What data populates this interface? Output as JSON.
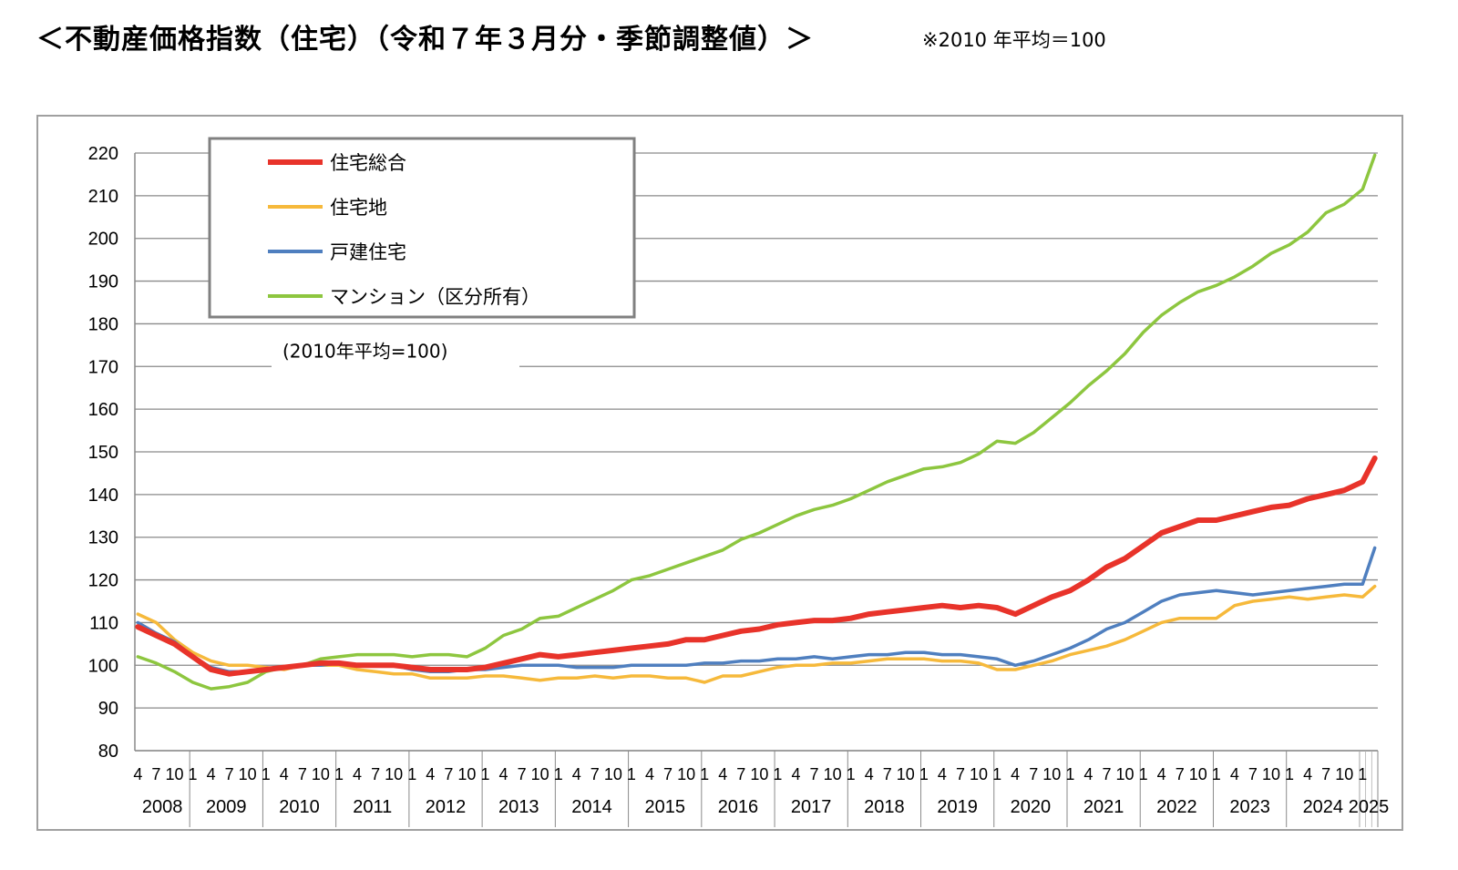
{
  "header": {
    "title": "＜不動産価格指数（住宅）（令和７年３月分・季節調整値）＞",
    "note": "※2010 年平均＝100"
  },
  "chart_data": {
    "type": "line",
    "title": "",
    "xlabel": "",
    "ylabel": "",
    "baseline_note": "(2010年平均=100)",
    "ylim": [
      80,
      220
    ],
    "yticks": [
      80,
      90,
      100,
      110,
      120,
      130,
      140,
      150,
      160,
      170,
      180,
      190,
      200,
      210,
      220
    ],
    "grid": true,
    "legend_position": "top-left",
    "x_start": "2008-04",
    "x_end": "2025-03",
    "year_labels": [
      "2008",
      "2009",
      "2010",
      "2011",
      "2012",
      "2013",
      "2014",
      "2015",
      "2016",
      "2017",
      "2018",
      "2019",
      "2020",
      "2021",
      "2022",
      "2023",
      "2024",
      "2025"
    ],
    "month_tick_labels": [
      "4",
      "7",
      "10",
      "1"
    ],
    "series": [
      {
        "name": "住宅総合",
        "color": "#e8332a",
        "points": [
          [
            "2008-04",
            109
          ],
          [
            "2008-07",
            107
          ],
          [
            "2008-10",
            105
          ],
          [
            "2009-01",
            102
          ],
          [
            "2009-04",
            99
          ],
          [
            "2009-07",
            98
          ],
          [
            "2009-10",
            98.5
          ],
          [
            "2010-01",
            99
          ],
          [
            "2010-04",
            99.5
          ],
          [
            "2010-07",
            100
          ],
          [
            "2010-10",
            100.5
          ],
          [
            "2011-01",
            100.5
          ],
          [
            "2011-04",
            100
          ],
          [
            "2011-07",
            100
          ],
          [
            "2011-10",
            100
          ],
          [
            "2012-01",
            99.5
          ],
          [
            "2012-04",
            99
          ],
          [
            "2012-07",
            99
          ],
          [
            "2012-10",
            99
          ],
          [
            "2013-01",
            99.5
          ],
          [
            "2013-04",
            100.5
          ],
          [
            "2013-07",
            101.5
          ],
          [
            "2013-10",
            102.5
          ],
          [
            "2014-01",
            102
          ],
          [
            "2014-04",
            102.5
          ],
          [
            "2014-07",
            103
          ],
          [
            "2014-10",
            103.5
          ],
          [
            "2015-01",
            104
          ],
          [
            "2015-04",
            104.5
          ],
          [
            "2015-07",
            105
          ],
          [
            "2015-10",
            106
          ],
          [
            "2016-01",
            106
          ],
          [
            "2016-04",
            107
          ],
          [
            "2016-07",
            108
          ],
          [
            "2016-10",
            108.5
          ],
          [
            "2017-01",
            109.5
          ],
          [
            "2017-04",
            110
          ],
          [
            "2017-07",
            110.5
          ],
          [
            "2017-10",
            110.5
          ],
          [
            "2018-01",
            111
          ],
          [
            "2018-04",
            112
          ],
          [
            "2018-07",
            112.5
          ],
          [
            "2018-10",
            113
          ],
          [
            "2019-01",
            113.5
          ],
          [
            "2019-04",
            114
          ],
          [
            "2019-07",
            113.5
          ],
          [
            "2019-10",
            114
          ],
          [
            "2020-01",
            113.5
          ],
          [
            "2020-04",
            112
          ],
          [
            "2020-07",
            114
          ],
          [
            "2020-10",
            116
          ],
          [
            "2021-01",
            117.5
          ],
          [
            "2021-04",
            120
          ],
          [
            "2021-07",
            123
          ],
          [
            "2021-10",
            125
          ],
          [
            "2022-01",
            128
          ],
          [
            "2022-04",
            131
          ],
          [
            "2022-07",
            132.5
          ],
          [
            "2022-10",
            134
          ],
          [
            "2023-01",
            134
          ],
          [
            "2023-04",
            135
          ],
          [
            "2023-07",
            136
          ],
          [
            "2023-10",
            137
          ],
          [
            "2024-01",
            137.5
          ],
          [
            "2024-04",
            139
          ],
          [
            "2024-07",
            140
          ],
          [
            "2024-10",
            141
          ],
          [
            "2025-01",
            143
          ],
          [
            "2025-03",
            148.5
          ]
        ]
      },
      {
        "name": "住宅地",
        "color": "#f6b93b",
        "points": [
          [
            "2008-04",
            112
          ],
          [
            "2008-07",
            110
          ],
          [
            "2008-10",
            106
          ],
          [
            "2009-01",
            103
          ],
          [
            "2009-04",
            101
          ],
          [
            "2009-07",
            100
          ],
          [
            "2009-10",
            100
          ],
          [
            "2010-01",
            99.5
          ],
          [
            "2010-04",
            99
          ],
          [
            "2010-07",
            100
          ],
          [
            "2010-10",
            100
          ],
          [
            "2011-01",
            100
          ],
          [
            "2011-04",
            99
          ],
          [
            "2011-07",
            98.5
          ],
          [
            "2011-10",
            98
          ],
          [
            "2012-01",
            98
          ],
          [
            "2012-04",
            97
          ],
          [
            "2012-07",
            97
          ],
          [
            "2012-10",
            97
          ],
          [
            "2013-01",
            97.5
          ],
          [
            "2013-04",
            97.5
          ],
          [
            "2013-07",
            97
          ],
          [
            "2013-10",
            96.5
          ],
          [
            "2014-01",
            97
          ],
          [
            "2014-04",
            97
          ],
          [
            "2014-07",
            97.5
          ],
          [
            "2014-10",
            97
          ],
          [
            "2015-01",
            97.5
          ],
          [
            "2015-04",
            97.5
          ],
          [
            "2015-07",
            97
          ],
          [
            "2015-10",
            97
          ],
          [
            "2016-01",
            96
          ],
          [
            "2016-04",
            97.5
          ],
          [
            "2016-07",
            97.5
          ],
          [
            "2016-10",
            98.5
          ],
          [
            "2017-01",
            99.5
          ],
          [
            "2017-04",
            100
          ],
          [
            "2017-07",
            100
          ],
          [
            "2017-10",
            100.5
          ],
          [
            "2018-01",
            100.5
          ],
          [
            "2018-04",
            101
          ],
          [
            "2018-07",
            101.5
          ],
          [
            "2018-10",
            101.5
          ],
          [
            "2019-01",
            101.5
          ],
          [
            "2019-04",
            101
          ],
          [
            "2019-07",
            101
          ],
          [
            "2019-10",
            100.5
          ],
          [
            "2020-01",
            99
          ],
          [
            "2020-04",
            99
          ],
          [
            "2020-07",
            100
          ],
          [
            "2020-10",
            101
          ],
          [
            "2021-01",
            102.5
          ],
          [
            "2021-04",
            103.5
          ],
          [
            "2021-07",
            104.5
          ],
          [
            "2021-10",
            106
          ],
          [
            "2022-01",
            108
          ],
          [
            "2022-04",
            110
          ],
          [
            "2022-07",
            111
          ],
          [
            "2022-10",
            111
          ],
          [
            "2023-01",
            111
          ],
          [
            "2023-04",
            114
          ],
          [
            "2023-07",
            115
          ],
          [
            "2023-10",
            115.5
          ],
          [
            "2024-01",
            116
          ],
          [
            "2024-04",
            115.5
          ],
          [
            "2024-07",
            116
          ],
          [
            "2024-10",
            116.5
          ],
          [
            "2025-01",
            116
          ],
          [
            "2025-03",
            118.5
          ]
        ]
      },
      {
        "name": "戸建住宅",
        "color": "#4f7fbf",
        "points": [
          [
            "2008-04",
            110
          ],
          [
            "2008-07",
            107.5
          ],
          [
            "2008-10",
            105.5
          ],
          [
            "2009-01",
            102
          ],
          [
            "2009-04",
            99.5
          ],
          [
            "2009-07",
            98.5
          ],
          [
            "2009-10",
            98.5
          ],
          [
            "2010-01",
            99
          ],
          [
            "2010-04",
            99.5
          ],
          [
            "2010-07",
            100
          ],
          [
            "2010-10",
            100
          ],
          [
            "2011-01",
            100.5
          ],
          [
            "2011-04",
            100
          ],
          [
            "2011-07",
            100
          ],
          [
            "2011-10",
            100
          ],
          [
            "2012-01",
            99
          ],
          [
            "2012-04",
            98.5
          ],
          [
            "2012-07",
            98.5
          ],
          [
            "2012-10",
            99
          ],
          [
            "2013-01",
            99
          ],
          [
            "2013-04",
            99.5
          ],
          [
            "2013-07",
            100
          ],
          [
            "2013-10",
            100
          ],
          [
            "2014-01",
            100
          ],
          [
            "2014-04",
            99.5
          ],
          [
            "2014-07",
            99.5
          ],
          [
            "2014-10",
            99.5
          ],
          [
            "2015-01",
            100
          ],
          [
            "2015-04",
            100
          ],
          [
            "2015-07",
            100
          ],
          [
            "2015-10",
            100
          ],
          [
            "2016-01",
            100.5
          ],
          [
            "2016-04",
            100.5
          ],
          [
            "2016-07",
            101
          ],
          [
            "2016-10",
            101
          ],
          [
            "2017-01",
            101.5
          ],
          [
            "2017-04",
            101.5
          ],
          [
            "2017-07",
            102
          ],
          [
            "2017-10",
            101.5
          ],
          [
            "2018-01",
            102
          ],
          [
            "2018-04",
            102.5
          ],
          [
            "2018-07",
            102.5
          ],
          [
            "2018-10",
            103
          ],
          [
            "2019-01",
            103
          ],
          [
            "2019-04",
            102.5
          ],
          [
            "2019-07",
            102.5
          ],
          [
            "2019-10",
            102
          ],
          [
            "2020-01",
            101.5
          ],
          [
            "2020-04",
            100
          ],
          [
            "2020-07",
            101
          ],
          [
            "2020-10",
            102.5
          ],
          [
            "2021-01",
            104
          ],
          [
            "2021-04",
            106
          ],
          [
            "2021-07",
            108.5
          ],
          [
            "2021-10",
            110
          ],
          [
            "2022-01",
            112.5
          ],
          [
            "2022-04",
            115
          ],
          [
            "2022-07",
            116.5
          ],
          [
            "2022-10",
            117
          ],
          [
            "2023-01",
            117.5
          ],
          [
            "2023-04",
            117
          ],
          [
            "2023-07",
            116.5
          ],
          [
            "2023-10",
            117
          ],
          [
            "2024-01",
            117.5
          ],
          [
            "2024-04",
            118
          ],
          [
            "2024-07",
            118.5
          ],
          [
            "2024-10",
            119
          ],
          [
            "2025-01",
            119
          ],
          [
            "2025-03",
            127.5
          ]
        ]
      },
      {
        "name": "マンション（区分所有）",
        "color": "#8dc63f",
        "points": [
          [
            "2008-04",
            102
          ],
          [
            "2008-07",
            100.5
          ],
          [
            "2008-10",
            98.5
          ],
          [
            "2009-01",
            96
          ],
          [
            "2009-04",
            94.5
          ],
          [
            "2009-07",
            95
          ],
          [
            "2009-10",
            96
          ],
          [
            "2010-01",
            98.5
          ],
          [
            "2010-04",
            99.5
          ],
          [
            "2010-07",
            100
          ],
          [
            "2010-10",
            101.5
          ],
          [
            "2011-01",
            102
          ],
          [
            "2011-04",
            102.5
          ],
          [
            "2011-07",
            102.5
          ],
          [
            "2011-10",
            102.5
          ],
          [
            "2012-01",
            102
          ],
          [
            "2012-04",
            102.5
          ],
          [
            "2012-07",
            102.5
          ],
          [
            "2012-10",
            102
          ],
          [
            "2013-01",
            104
          ],
          [
            "2013-04",
            107
          ],
          [
            "2013-07",
            108.5
          ],
          [
            "2013-10",
            111
          ],
          [
            "2014-01",
            111.5
          ],
          [
            "2014-04",
            113.5
          ],
          [
            "2014-07",
            115.5
          ],
          [
            "2014-10",
            117.5
          ],
          [
            "2015-01",
            120
          ],
          [
            "2015-04",
            121
          ],
          [
            "2015-07",
            122.5
          ],
          [
            "2015-10",
            124
          ],
          [
            "2016-01",
            125.5
          ],
          [
            "2016-04",
            127
          ],
          [
            "2016-07",
            129.5
          ],
          [
            "2016-10",
            131
          ],
          [
            "2017-01",
            133
          ],
          [
            "2017-04",
            135
          ],
          [
            "2017-07",
            136.5
          ],
          [
            "2017-10",
            137.5
          ],
          [
            "2018-01",
            139
          ],
          [
            "2018-04",
            141
          ],
          [
            "2018-07",
            143
          ],
          [
            "2018-10",
            144.5
          ],
          [
            "2019-01",
            146
          ],
          [
            "2019-04",
            146.5
          ],
          [
            "2019-07",
            147.5
          ],
          [
            "2019-10",
            149.5
          ],
          [
            "2020-01",
            152.5
          ],
          [
            "2020-04",
            152
          ],
          [
            "2020-07",
            154.5
          ],
          [
            "2020-10",
            158
          ],
          [
            "2021-01",
            161.5
          ],
          [
            "2021-04",
            165.5
          ],
          [
            "2021-07",
            169
          ],
          [
            "2021-10",
            173
          ],
          [
            "2022-01",
            178
          ],
          [
            "2022-04",
            182
          ],
          [
            "2022-07",
            185
          ],
          [
            "2022-10",
            187.5
          ],
          [
            "2023-01",
            189
          ],
          [
            "2023-04",
            191
          ],
          [
            "2023-07",
            193.5
          ],
          [
            "2023-10",
            196.5
          ],
          [
            "2024-01",
            198.5
          ],
          [
            "2024-04",
            201.5
          ],
          [
            "2024-07",
            206
          ],
          [
            "2024-10",
            208
          ],
          [
            "2025-01",
            211.5
          ],
          [
            "2025-03",
            219.5
          ]
        ]
      }
    ]
  }
}
